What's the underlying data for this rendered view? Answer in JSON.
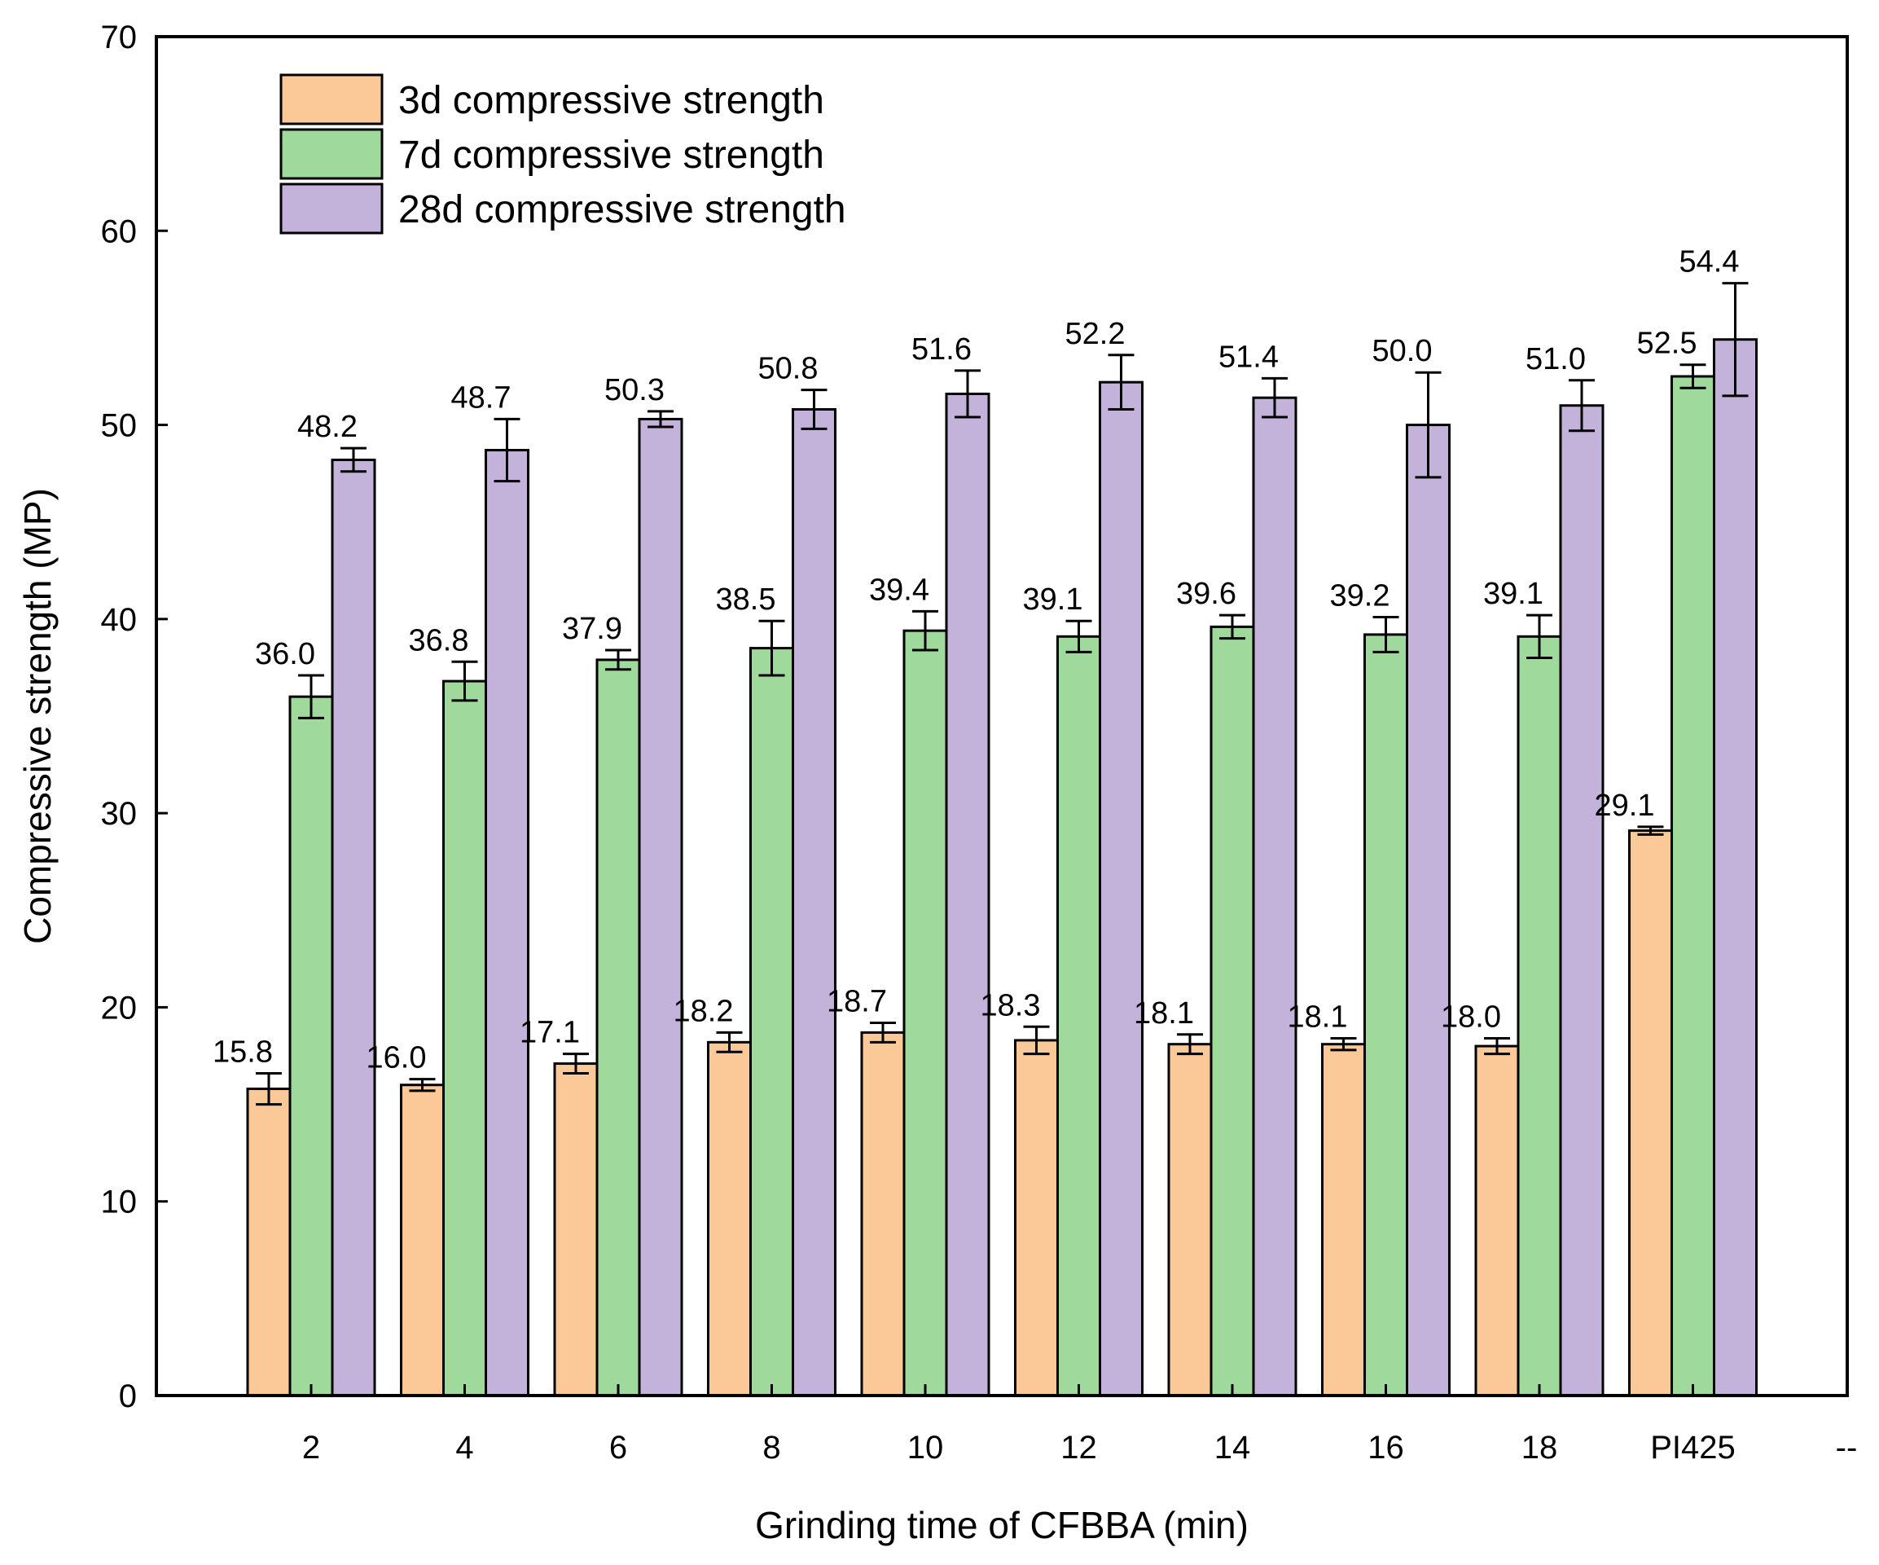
{
  "chart_data": {
    "type": "bar",
    "title": "",
    "xlabel": "Grinding time of CFBBA (min)",
    "ylabel": "Compressive strength (MP)",
    "ylim": [
      0,
      70
    ],
    "yticks": [
      0,
      10,
      20,
      30,
      40,
      50,
      60,
      70
    ],
    "categories": [
      "2",
      "4",
      "6",
      "8",
      "10",
      "12",
      "14",
      "16",
      "18",
      "PI425"
    ],
    "extra_tick_label": "--",
    "legend_position": "top-left",
    "series": [
      {
        "name": "3d compressive strength",
        "color": "#FBC898",
        "values": [
          15.8,
          16.0,
          17.1,
          18.2,
          18.7,
          18.3,
          18.1,
          18.1,
          18.0,
          29.1
        ],
        "labels": [
          "15.8",
          "16.0",
          "17.1",
          "18.2",
          "18.7",
          "18.3",
          "18.1",
          "18.1",
          "18.0",
          "29.1"
        ],
        "errors": [
          0.8,
          0.3,
          0.5,
          0.5,
          0.5,
          0.7,
          0.5,
          0.3,
          0.4,
          0.2
        ]
      },
      {
        "name": "7d compressive strength",
        "color": "#9FD99C",
        "values": [
          36.0,
          36.8,
          37.9,
          38.5,
          39.4,
          39.1,
          39.6,
          39.2,
          39.1,
          52.5
        ],
        "labels": [
          "36.0",
          "36.8",
          "37.9",
          "38.5",
          "39.4",
          "39.1",
          "39.6",
          "39.2",
          "39.1",
          "52.5"
        ],
        "errors": [
          1.1,
          1.0,
          0.5,
          1.4,
          1.0,
          0.8,
          0.6,
          0.9,
          1.1,
          0.6
        ]
      },
      {
        "name": "28d compressive strength",
        "color": "#C3B3DA",
        "values": [
          48.2,
          48.7,
          50.3,
          50.8,
          51.6,
          52.2,
          51.4,
          50.0,
          51.0,
          54.4
        ],
        "labels": [
          "48.2",
          "48.7",
          "50.3",
          "50.8",
          "51.6",
          "52.2",
          "51.4",
          "50.0",
          "51.0",
          "54.4"
        ],
        "errors": [
          0.6,
          1.6,
          0.4,
          1.0,
          1.2,
          1.4,
          1.0,
          2.7,
          1.3,
          2.9
        ]
      }
    ]
  }
}
